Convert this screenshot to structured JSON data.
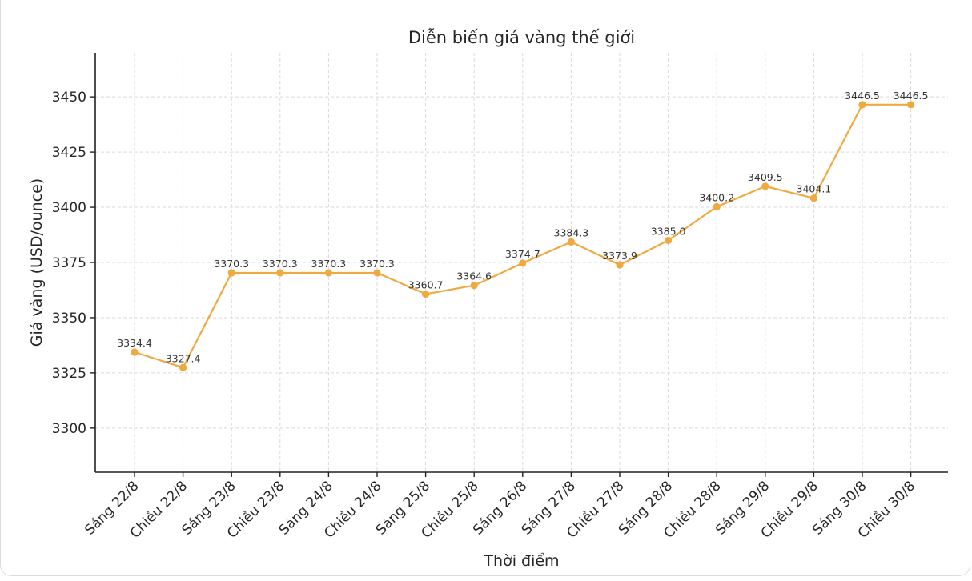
{
  "chart_data": {
    "type": "line",
    "title": "Diễn biến giá vàng thế giới",
    "xlabel": "Thời điểm",
    "ylabel": "Giá vàng (USD/ounce)",
    "categories": [
      "Sáng 22/8",
      "Chiều 22/8",
      "Sáng 23/8",
      "Chiều 23/8",
      "Sáng 24/8",
      "Chiều 24/8",
      "Sáng 25/8",
      "Chiều 25/8",
      "Sáng 26/8",
      "Sáng 27/8",
      "Chiều 27/8",
      "Sáng 28/8",
      "Chiều 28/8",
      "Sáng 29/8",
      "Chiều 29/8",
      "Sáng 30/8",
      "Chiều 30/8"
    ],
    "series": [
      {
        "values": [
          3334.4,
          3327.4,
          3370.3,
          3370.3,
          3370.3,
          3370.3,
          3360.7,
          3364.6,
          3374.7,
          3384.3,
          3373.9,
          3385.0,
          3400.2,
          3409.5,
          3404.1,
          3446.5,
          3446.5
        ],
        "data_labels": [
          "3334.4",
          "3327.4",
          "3370.3",
          "3370.3",
          "3370.3",
          "3370.3",
          "3360.7",
          "3364.6",
          "3374.7",
          "3384.3",
          "3373.9",
          "3385.0",
          "3400.2",
          "3409.5",
          "3404.1",
          "3446.5",
          "3446.5"
        ],
        "color": "#efa93e"
      }
    ],
    "ylim": [
      3280,
      3470
    ],
    "yticks": [
      3300,
      3325,
      3350,
      3375,
      3400,
      3425,
      3450
    ],
    "ytick_labels": [
      "3300",
      "3325",
      "3350",
      "3375",
      "3400",
      "3425",
      "3450"
    ],
    "grid": true,
    "legend": "none"
  }
}
